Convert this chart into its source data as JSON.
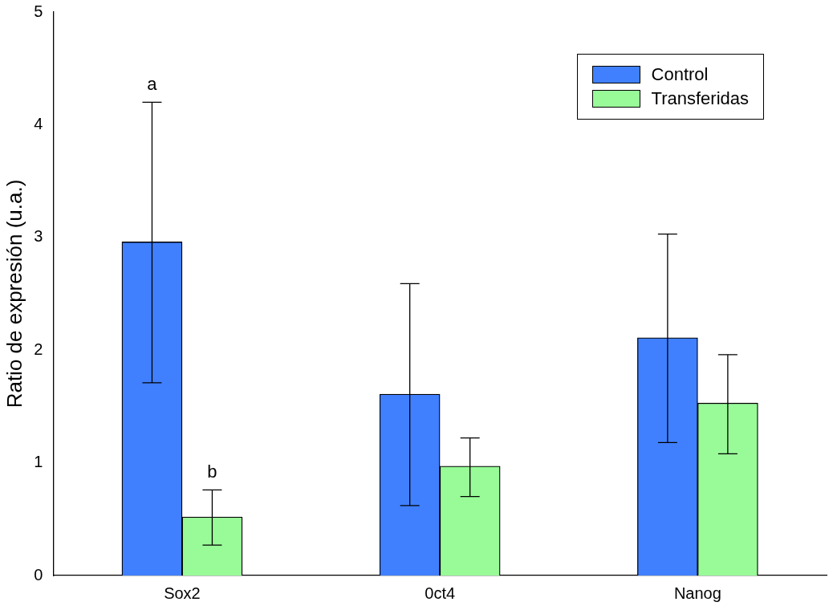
{
  "chart_data": {
    "type": "bar",
    "ylabel": "Ratio de expresión (u.a.)",
    "categories": [
      "Sox2",
      "0ct4",
      "Nanog"
    ],
    "series": [
      {
        "name": "Control",
        "color": "#4080ff",
        "values": [
          2.96,
          1.61,
          2.11
        ],
        "errors": [
          [
            1.71,
            4.2
          ],
          [
            0.62,
            2.59
          ],
          [
            1.18,
            3.03
          ]
        ]
      },
      {
        "name": "Transferidas",
        "color": "#98fb98",
        "values": [
          0.52,
          0.97,
          1.53
        ],
        "errors": [
          [
            0.27,
            0.76
          ],
          [
            0.7,
            1.22
          ],
          [
            1.08,
            1.96
          ]
        ]
      }
    ],
    "ylim": [
      0,
      5
    ],
    "yticks": [
      0,
      1,
      2,
      3,
      4,
      5
    ],
    "grid": false,
    "legend": "top right",
    "annotations": [
      "a",
      "b"
    ]
  }
}
